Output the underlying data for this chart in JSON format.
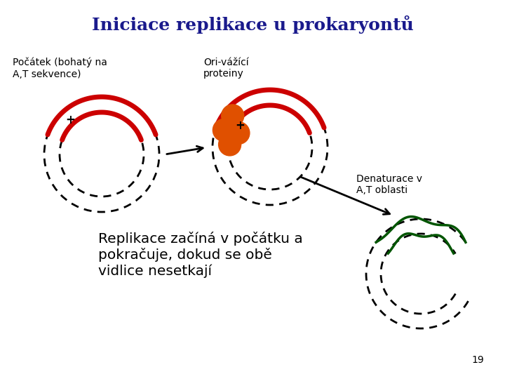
{
  "title": "Iniciace replikace u prokaryontů",
  "title_color": "#1a1a8c",
  "title_fontsize": 18,
  "background_color": "#ffffff",
  "label1": "Počátek (bohatý na\nA,T sekvence)",
  "label2": "Ori-vážící\nproteiny",
  "label3": "Denaturace v\nA,T oblasti",
  "label4": "Replikace začíná v počátku a\npokračuje, dokud se obě\nvidlice nesetkají",
  "page_number": "19",
  "red_color": "#cc0000",
  "orange_color": "#e05000",
  "green_color": "#005500",
  "black_color": "#000000"
}
